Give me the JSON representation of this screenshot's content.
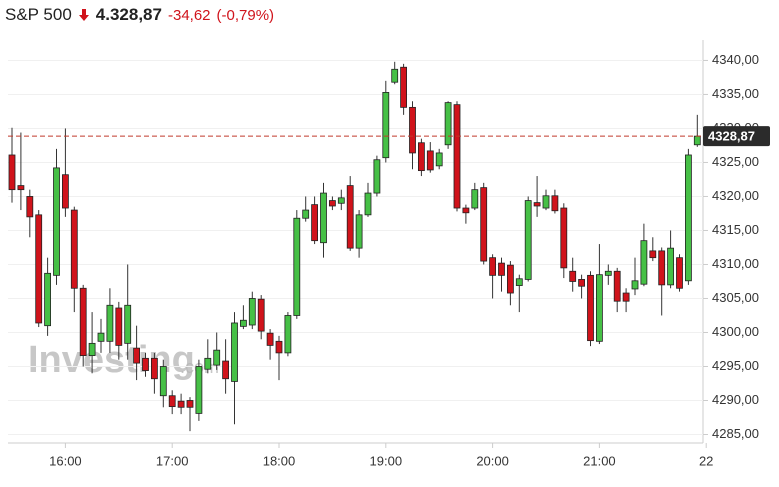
{
  "chart_data": {
    "type": "candlestick",
    "title": "S&P 500",
    "price": "4.328,87",
    "change": "-34,62",
    "change_percent": "(-0,79%)",
    "watermark": "Investing",
    "watermark_suffix": ".com",
    "up_color": "#46c046",
    "down_color": "#d0131b",
    "x": [
      "15:30",
      "15:35",
      "15:40",
      "15:45",
      "15:50",
      "15:55",
      "16:00",
      "16:05",
      "16:10",
      "16:15",
      "16:20",
      "16:25",
      "16:30",
      "16:35",
      "16:40",
      "16:45",
      "16:50",
      "16:55",
      "17:00",
      "17:05",
      "17:10",
      "17:15",
      "17:20",
      "17:25",
      "17:30",
      "17:35",
      "17:40",
      "17:45",
      "17:50",
      "17:55",
      "18:00",
      "18:05",
      "18:10",
      "18:15",
      "18:20",
      "18:25",
      "18:30",
      "18:35",
      "18:40",
      "18:45",
      "18:50",
      "18:55",
      "19:00",
      "19:05",
      "19:10",
      "19:15",
      "19:20",
      "19:25",
      "19:30",
      "19:35",
      "19:40",
      "19:45",
      "19:50",
      "19:55",
      "20:00",
      "20:05",
      "20:10",
      "20:15",
      "20:20",
      "20:25",
      "20:30",
      "20:35",
      "20:40",
      "20:45",
      "20:50",
      "20:55",
      "21:00",
      "21:05",
      "21:10",
      "21:15",
      "21:20",
      "21:25",
      "21:30",
      "21:35",
      "21:40",
      "21:45",
      "21:50",
      "21:55"
    ],
    "open": [
      4326.1,
      4321.6,
      4320,
      4317.3,
      4301,
      4308.4,
      4323.2,
      4318,
      4306.5,
      4296.6,
      4298.7,
      4298.7,
      4303.6,
      4298.4,
      4297.7,
      4296.2,
      4296.2,
      4290.7,
      4290.7,
      4289.9,
      4290,
      4288.1,
      4294.6,
      4295.2,
      4295.8,
      4292.8,
      4300.9,
      4301.1,
      4304.9,
      4299.9,
      4298.7,
      4297,
      4302.5,
      4316.8,
      4318.8,
      4313.2,
      4319.4,
      4319,
      4321.6,
      4312.4,
      4317.3,
      4320.5,
      4325.7,
      4336.8,
      4339,
      4333.1,
      4327.9,
      4326.7,
      4324.5,
      4327.6,
      4333.5,
      4318.3,
      4318.3,
      4321.3,
      4311,
      4310.2,
      4309.9,
      4306.9,
      4307.8,
      4319.1,
      4318.3,
      4320.1,
      4318.3,
      4309,
      4307.8,
      4308.4,
      4298.7,
      4308.4,
      4309,
      4305.8,
      4306.4,
      4307.1,
      4312,
      4312,
      4307,
      4311,
      4307.6,
      4327.6
    ],
    "high": [
      4330.1,
      4329.4,
      4321,
      4318,
      4311,
      4327,
      4330,
      4318.5,
      4307,
      4303,
      4302,
      4306.5,
      4304.5,
      4310,
      4301,
      4297,
      4297,
      4296,
      4291.5,
      4291,
      4290.5,
      4296,
      4299,
      4300,
      4299,
      4303,
      4304,
      4306,
      4305.5,
      4300.5,
      4299.5,
      4303,
      4318,
      4320,
      4320,
      4322,
      4320,
      4321,
      4323,
      4318,
      4322,
      4326,
      4337,
      4339.8,
      4339.5,
      4334,
      4328.5,
      4328,
      4327,
      4334,
      4334,
      4318.8,
      4322,
      4322,
      4311.5,
      4311,
      4310.5,
      4308.5,
      4320,
      4323,
      4321,
      4321,
      4319,
      4311,
      4308.5,
      4309,
      4313,
      4310,
      4309.5,
      4306.5,
      4311,
      4316,
      4314,
      4312.5,
      4315,
      4311.5,
      4327,
      4332
    ],
    "low": [
      4319.1,
      4318,
      4314,
      4300.8,
      4299.5,
      4307,
      4317,
      4303,
      4295,
      4294,
      4297,
      4297,
      4296,
      4296,
      4293,
      4293.5,
      4291,
      4289,
      4288,
      4288,
      4285.5,
      4287,
      4294,
      4294.5,
      4291,
      4286.5,
      4300.5,
      4300.5,
      4299,
      4296,
      4293,
      4296.5,
      4302,
      4316.3,
      4313,
      4311,
      4318,
      4318,
      4312,
      4311,
      4317,
      4320,
      4325,
      4336.5,
      4332,
      4324,
      4323,
      4323.5,
      4324,
      4327,
      4317.8,
      4316,
      4318,
      4310,
      4305,
      4306,
      4304,
      4303,
      4307.5,
      4317,
      4318,
      4317.5,
      4308,
      4306,
      4305,
      4298,
      4298.3,
      4307,
      4303,
      4303,
      4305.5,
      4306.8,
      4310.5,
      4302.5,
      4306.5,
      4306,
      4307,
      4327.3
    ],
    "close": [
      4321,
      4321,
      4317,
      4301.4,
      4308.7,
      4324.2,
      4318.3,
      4306.5,
      4296.6,
      4298.4,
      4299.9,
      4304,
      4298.1,
      4304,
      4295.5,
      4294.4,
      4293.2,
      4295,
      4289.1,
      4289,
      4289,
      4295,
      4296.2,
      4297.4,
      4293.2,
      4301.4,
      4301.8,
      4305,
      4300.2,
      4298.1,
      4297,
      4302.5,
      4316.8,
      4318,
      4313.5,
      4320.5,
      4318.6,
      4319.8,
      4312.4,
      4317.3,
      4320.5,
      4325.4,
      4335.3,
      4338.7,
      4333.1,
      4326.4,
      4323.8,
      4323.9,
      4326.4,
      4333.8,
      4318.3,
      4317.6,
      4321,
      4310.5,
      4308.4,
      4308.4,
      4305.8,
      4307.9,
      4319.4,
      4318.6,
      4320.1,
      4317.9,
      4309.5,
      4307.5,
      4306.8,
      4298.8,
      4308.5,
      4309,
      4304.6,
      4304.6,
      4307.6,
      4313.5,
      4311,
      4307,
      4312.4,
      4306.5,
      4326.1,
      4328.87
    ],
    "last_price": {
      "value": 4328.87,
      "label": "4328,87"
    },
    "ylim": [
      4282.5,
      4343.3
    ],
    "yticks": [
      {
        "value": 4285,
        "label": "4285,00"
      },
      {
        "value": 4290,
        "label": "4290,00"
      },
      {
        "value": 4295,
        "label": "4295,00"
      },
      {
        "value": 4300,
        "label": "4300,00"
      },
      {
        "value": 4305,
        "label": "4305,00"
      },
      {
        "value": 4310,
        "label": "4310,00"
      },
      {
        "value": 4315,
        "label": "4315,00"
      },
      {
        "value": 4320,
        "label": "4320,00"
      },
      {
        "value": 4325,
        "label": "4325,00"
      },
      {
        "value": 4330,
        "label": "4330,00"
      },
      {
        "value": 4335,
        "label": "4335,00"
      },
      {
        "value": 4340,
        "label": "4340,00"
      }
    ],
    "xticks": [
      "16:00",
      "17:00",
      "18:00",
      "19:00",
      "20:00",
      "21:00",
      {
        "value": "22:00",
        "label": "22"
      }
    ],
    "grid": true
  }
}
